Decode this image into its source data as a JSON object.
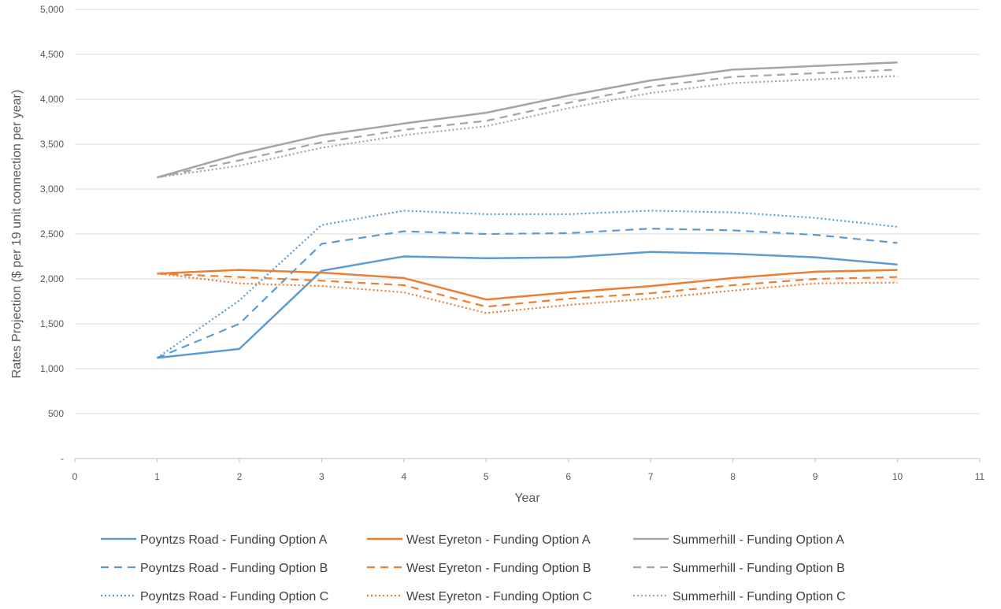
{
  "chart_data": {
    "type": "line",
    "xlabel": "Year",
    "ylabel": "Rates Projection ($ per 19 unit connection per year)",
    "xlim": [
      0,
      11
    ],
    "ylim": [
      0,
      5000
    ],
    "x_ticks": [
      "0",
      "1",
      "2",
      "3",
      "4",
      "5",
      "6",
      "7",
      "8",
      "9",
      "10",
      "11"
    ],
    "y_ticks": [
      "-",
      "500",
      "1,000",
      "1,500",
      "2,000",
      "2,500",
      "3,000",
      "3,500",
      "4,000",
      "4,500",
      "5,000"
    ],
    "y_tick_values": [
      0,
      500,
      1000,
      1500,
      2000,
      2500,
      3000,
      3500,
      4000,
      4500,
      5000
    ],
    "grid": "horizontal",
    "legend_position": "bottom",
    "x": [
      1,
      2,
      3,
      4,
      5,
      6,
      7,
      8,
      9,
      10
    ],
    "series": [
      {
        "name": "Poyntzs Road - Funding Option A",
        "color": "#5B9BD5",
        "dash": "solid",
        "values": [
          1120,
          1220,
          2090,
          2250,
          2230,
          2240,
          2300,
          2280,
          2240,
          2160
        ]
      },
      {
        "name": "West Eyreton - Funding Option A",
        "color": "#ED7D31",
        "dash": "solid",
        "values": [
          2060,
          2100,
          2070,
          2010,
          1770,
          1850,
          1920,
          2010,
          2080,
          2100
        ]
      },
      {
        "name": "Summerhill - Funding Option A",
        "color": "#A5A5A5",
        "dash": "solid",
        "values": [
          3130,
          3390,
          3600,
          3730,
          3850,
          4040,
          4210,
          4330,
          4370,
          4410
        ]
      },
      {
        "name": "Poyntzs Road - Funding Option B",
        "color": "#5B9BD5",
        "dash": "dashed",
        "values": [
          1120,
          1500,
          2390,
          2530,
          2500,
          2510,
          2560,
          2540,
          2490,
          2400
        ]
      },
      {
        "name": "West Eyreton - Funding Option B",
        "color": "#ED7D31",
        "dash": "dashed",
        "values": [
          2060,
          2020,
          1980,
          1930,
          1690,
          1780,
          1840,
          1930,
          2000,
          2020
        ]
      },
      {
        "name": "Summerhill - Funding Option B",
        "color": "#A5A5A5",
        "dash": "dashed",
        "values": [
          3130,
          3320,
          3520,
          3660,
          3760,
          3960,
          4140,
          4250,
          4290,
          4330
        ]
      },
      {
        "name": "Poyntzs Road - Funding Option C",
        "color": "#5B9BD5",
        "dash": "dotted",
        "values": [
          1120,
          1760,
          2600,
          2760,
          2720,
          2720,
          2760,
          2740,
          2680,
          2580
        ]
      },
      {
        "name": "West Eyreton - Funding Option C",
        "color": "#ED7D31",
        "dash": "dotted",
        "values": [
          2060,
          1950,
          1920,
          1850,
          1620,
          1710,
          1780,
          1870,
          1950,
          1960
        ]
      },
      {
        "name": "Summerhill - Funding Option C",
        "color": "#A5A5A5",
        "dash": "dotted",
        "values": [
          3130,
          3260,
          3460,
          3600,
          3700,
          3900,
          4070,
          4180,
          4220,
          4260
        ]
      }
    ]
  }
}
